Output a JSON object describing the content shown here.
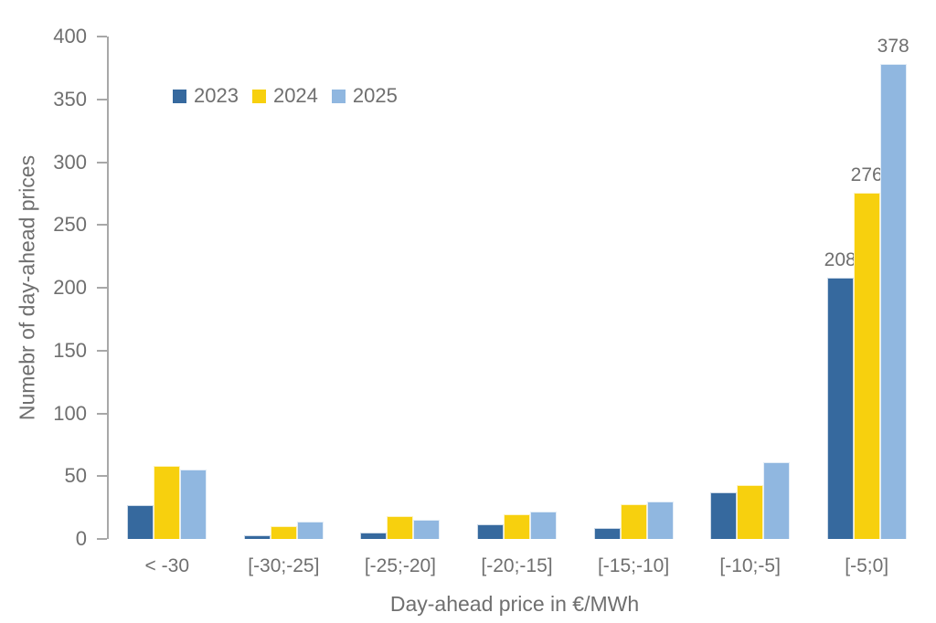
{
  "chart_data": {
    "type": "bar",
    "title": "",
    "categories": [
      "< -30",
      "[-30;-25]",
      "[-25;-20]",
      "[-20;-15]",
      "[-15;-10]",
      "[-10;-5]",
      "[-5;0]"
    ],
    "series": [
      {
        "name": "2023",
        "color": "#36699E",
        "values": [
          27,
          3,
          5,
          12,
          9,
          37,
          208
        ]
      },
      {
        "name": "2024",
        "color": "#F7D00E",
        "values": [
          58,
          10,
          18,
          20,
          28,
          43,
          276
        ]
      },
      {
        "name": "2025",
        "color": "#90B7E0",
        "values": [
          55,
          14,
          15,
          22,
          30,
          61,
          378
        ]
      }
    ],
    "xlabel": "Day-ahead price in €/MWh",
    "ylabel": "Numebr of day-ahead prices",
    "ylim": [
      0,
      400
    ],
    "ytick_step": 50,
    "grid": false,
    "legend_position": "top-left-inside",
    "data_labels": {
      "category_index": 6
    }
  },
  "styles": {
    "axis_color": "#A8A8A8",
    "text_color": "#6F6F6F",
    "background": "#FFFFFF"
  }
}
